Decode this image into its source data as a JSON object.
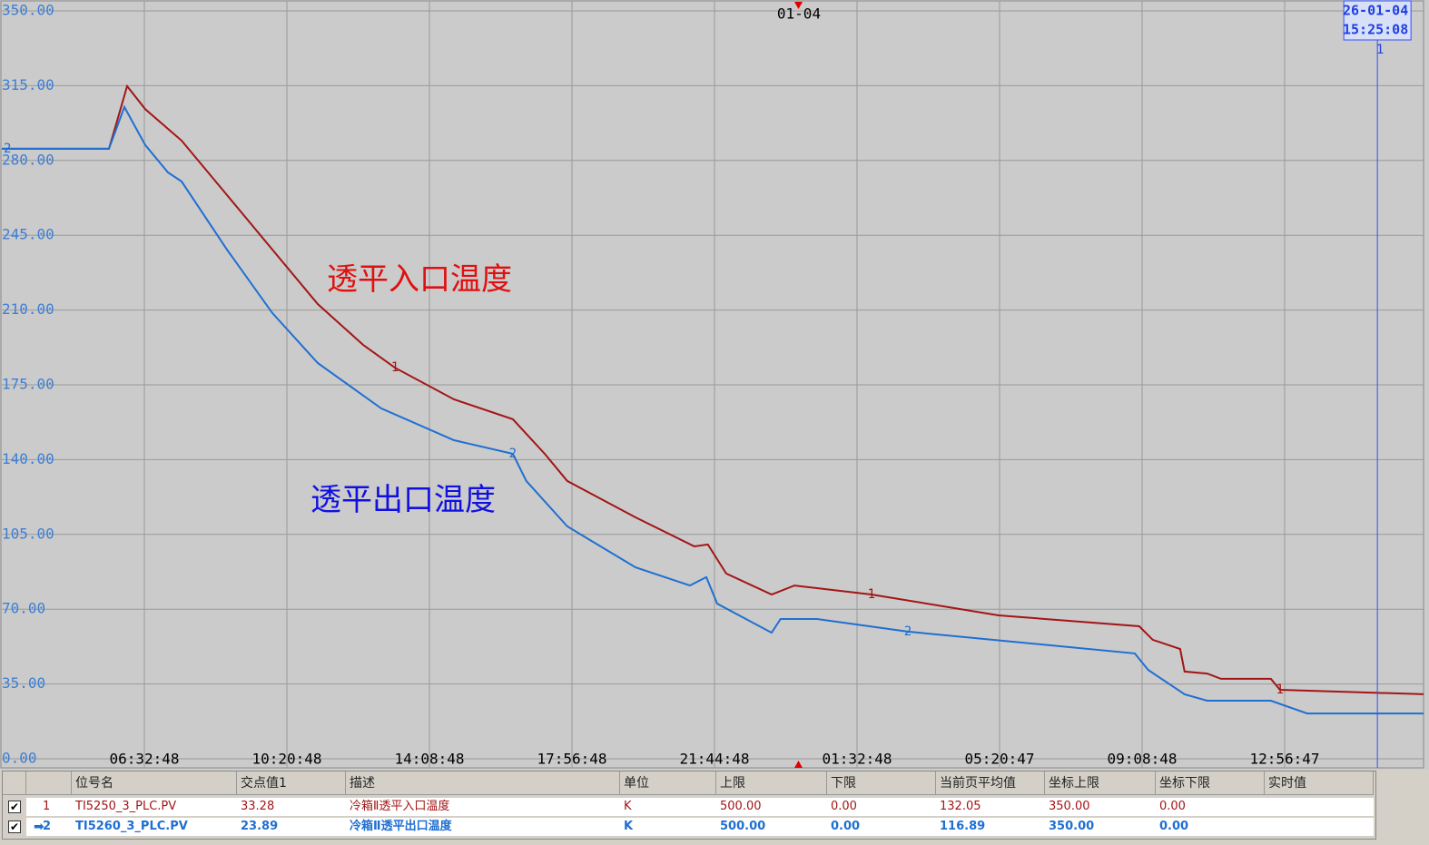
{
  "chart_data": {
    "type": "line",
    "date_label": "01-04",
    "annotations": [
      "透平入口温度",
      "透平出口温度"
    ],
    "xlim": [
      2.7467,
      40.65
    ],
    "xticks": [
      {
        "value": 6.5467,
        "label": "06:32:48"
      },
      {
        "value": 10.3467,
        "label": "10:20:48"
      },
      {
        "value": 14.1467,
        "label": "14:08:48"
      },
      {
        "value": 17.9467,
        "label": "17:56:48"
      },
      {
        "value": 21.7467,
        "label": "21:44:48"
      },
      {
        "value": 25.5467,
        "label": "01:32:48"
      },
      {
        "value": 29.3464,
        "label": "05:20:47"
      },
      {
        "value": 33.1467,
        "label": "09:08:48"
      },
      {
        "value": 36.9464,
        "label": "12:56:47"
      }
    ],
    "ylim": [
      0,
      350
    ],
    "yticks": [
      {
        "value": 0,
        "label": "0.00"
      },
      {
        "value": 35,
        "label": "35.00"
      },
      {
        "value": 70,
        "label": "70.00"
      },
      {
        "value": 105,
        "label": "105.00"
      },
      {
        "value": 140,
        "label": "140.00"
      },
      {
        "value": 175,
        "label": "175.00"
      },
      {
        "value": 210,
        "label": "210.00"
      },
      {
        "value": 245,
        "label": "245.00"
      },
      {
        "value": 280,
        "label": "280.00"
      },
      {
        "value": 315,
        "label": "315.00"
      },
      {
        "value": 350,
        "label": "350.00"
      }
    ],
    "grid": true,
    "cursor": {
      "x": 39.419,
      "date": "26-01-04",
      "time": "15:25:08",
      "label": "1"
    },
    "series": [
      {
        "name": "1",
        "color": "#a31515",
        "x": [
          2.75,
          5.603,
          5.845,
          6.087,
          6.571,
          7.539,
          8.749,
          9.96,
          11.17,
          12.38,
          13.23,
          14.8,
          16.37,
          17.22,
          17.82,
          19.64,
          21.21,
          21.57,
          22.06,
          23.27,
          23.88,
          25.93,
          29.32,
          33.07,
          33.43,
          34.16,
          34.28,
          34.88,
          35.25,
          36.58,
          36.82,
          40.65
        ],
        "values": [
          285.5,
          285.5,
          300,
          314.8,
          304,
          289.3,
          263.8,
          238.3,
          212.8,
          193.7,
          183,
          168.2,
          158.9,
          142.7,
          130,
          113,
          99.4,
          100.3,
          86.7,
          76.9,
          81.1,
          76.9,
          67.1,
          62,
          55.7,
          51.4,
          40.8,
          39.9,
          37.4,
          37.4,
          32.3,
          30.2
        ]
      },
      {
        "name": "2",
        "color": "#1f6fd1",
        "x": [
          2.75,
          5.603,
          6.014,
          6.571,
          7.176,
          7.539,
          8.749,
          9.96,
          11.17,
          12.86,
          14.8,
          16.37,
          16.73,
          17.82,
          19.64,
          21.09,
          21.53,
          21.82,
          23.27,
          23.51,
          24.48,
          26.9,
          32.95,
          33.31,
          34.28,
          34.88,
          36.58,
          37.55,
          40.65
        ],
        "values": [
          285.5,
          285.5,
          305,
          287.2,
          274.4,
          270.2,
          238.3,
          208.6,
          185.2,
          164,
          149.1,
          142.7,
          130,
          108.8,
          89.6,
          81.1,
          85,
          72.6,
          59,
          65.4,
          65.4,
          59.5,
          49.3,
          41.6,
          30.2,
          27.2,
          27.2,
          21.2,
          21.2
        ]
      }
    ]
  },
  "table": {
    "headers": [
      "位号名",
      "交点值1",
      "描述",
      "单位",
      "上限",
      "下限",
      "当前页平均值",
      "坐标上限",
      "坐标下限",
      "实时值"
    ],
    "rows": [
      [
        "1",
        "TI5250_3_PLC.PV",
        "33.28",
        "冷箱Ⅱ透平入口温度",
        "K",
        "500.00",
        "0.00",
        "132.05",
        "350.00",
        "0.00"
      ],
      [
        "2",
        "TI5260_3_PLC.PV",
        "23.89",
        "冷箱Ⅱ透平出口温度",
        "K",
        "500.00",
        "0.00",
        "116.89",
        "350.00",
        "0.00"
      ]
    ]
  }
}
